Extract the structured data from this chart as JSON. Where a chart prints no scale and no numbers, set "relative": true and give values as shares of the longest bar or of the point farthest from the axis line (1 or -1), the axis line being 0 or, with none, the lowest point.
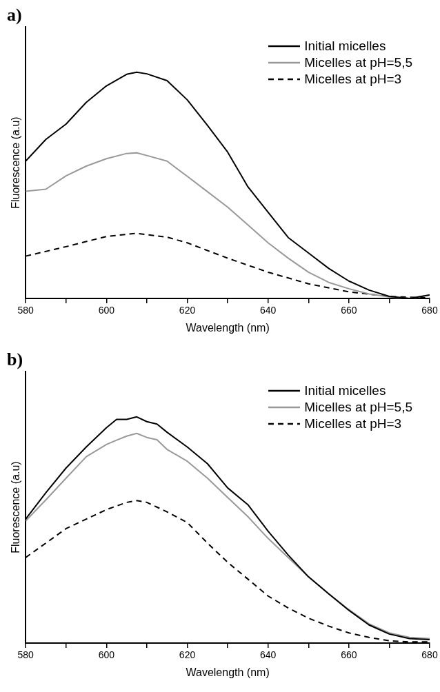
{
  "chart_data": [
    {
      "type": "line",
      "title": "a)",
      "xlabel": "Wavelength (nm)",
      "ylabel": "Fluorescence (a.u)",
      "relative": true,
      "xlim": [
        580,
        680
      ],
      "xticks": [
        580,
        {
          "value": 590,
          "label": null
        },
        600,
        {
          "value": 610,
          "label": null
        },
        620,
        {
          "value": 630,
          "label": null
        },
        640,
        {
          "value": 650,
          "label": null
        },
        660,
        {
          "value": 670,
          "label": null
        },
        680
      ],
      "legend": "top right",
      "grid": false,
      "marker": "none",
      "x": [
        580,
        585,
        590,
        595,
        600,
        605,
        607.5,
        610,
        615,
        620,
        625,
        630,
        635,
        640,
        645,
        650,
        655,
        660,
        665,
        670,
        675,
        680
      ],
      "series": [
        {
          "name": "Initial micelles",
          "color": "#000000",
          "line_style": "solid",
          "values": [
            0.607,
            0.703,
            0.771,
            0.867,
            0.94,
            0.991,
            1.0,
            0.993,
            0.963,
            0.878,
            0.765,
            0.647,
            0.494,
            0.381,
            0.269,
            0.201,
            0.133,
            0.077,
            0.037,
            0.009,
            0.0,
            0.015
          ]
        },
        {
          "name": "Micelles at pH=5,5",
          "color": "#999999",
          "line_style": "solid",
          "values": [
            0.474,
            0.483,
            0.542,
            0.585,
            0.618,
            0.641,
            0.644,
            0.632,
            0.607,
            0.54,
            0.472,
            0.404,
            0.325,
            0.246,
            0.178,
            0.116,
            0.071,
            0.043,
            0.02,
            0.007,
            0.0,
            0.015
          ]
        },
        {
          "name": "Micelles at pH=3",
          "color": "#000000",
          "line_style": "dashed",
          "x": [
            580,
            590,
            600,
            607.5,
            615,
            620,
            630,
            640,
            650,
            660,
            670,
            680
          ],
          "values": [
            0.187,
            0.229,
            0.274,
            0.288,
            0.271,
            0.246,
            0.178,
            0.116,
            0.065,
            0.029,
            0.009,
            0.002
          ]
        }
      ]
    },
    {
      "type": "line",
      "title": "b)",
      "xlabel": "Wavelength (nm)",
      "ylabel": "Fluorescence (a.u)",
      "relative": true,
      "xlim": [
        580,
        680
      ],
      "xticks": [
        580,
        {
          "value": 590,
          "label": null
        },
        600,
        {
          "value": 610,
          "label": null
        },
        620,
        {
          "value": 630,
          "label": null
        },
        640,
        {
          "value": 650,
          "label": null
        },
        660,
        {
          "value": 670,
          "label": null
        },
        680
      ],
      "legend": "top right",
      "grid": false,
      "marker": "none",
      "x": [
        580,
        585,
        590,
        595,
        600,
        602.5,
        605,
        607.5,
        610,
        612.5,
        615,
        620,
        625,
        630,
        635,
        640,
        645,
        650,
        655,
        660,
        665,
        670,
        675,
        680
      ],
      "series": [
        {
          "name": "Initial micelles",
          "color": "#000000",
          "line_style": "solid",
          "values": [
            0.548,
            0.665,
            0.774,
            0.867,
            0.952,
            0.989,
            0.989,
            1.0,
            0.979,
            0.968,
            0.932,
            0.867,
            0.793,
            0.686,
            0.612,
            0.495,
            0.389,
            0.293,
            0.218,
            0.145,
            0.08,
            0.04,
            0.02,
            0.015
          ]
        },
        {
          "name": "Micelles at pH=5,5",
          "color": "#999999",
          "line_style": "solid",
          "values": [
            0.54,
            0.633,
            0.729,
            0.824,
            0.878,
            0.897,
            0.915,
            0.927,
            0.909,
            0.899,
            0.856,
            0.804,
            0.729,
            0.644,
            0.559,
            0.463,
            0.378,
            0.293,
            0.218,
            0.148,
            0.085,
            0.045,
            0.025,
            0.02
          ]
        },
        {
          "name": "Micelles at pH=3",
          "color": "#000000",
          "line_style": "dashed",
          "values": [
            0.378,
            0.442,
            0.506,
            0.548,
            0.59,
            0.606,
            0.622,
            0.63,
            0.622,
            0.601,
            0.58,
            0.533,
            0.442,
            0.357,
            0.283,
            0.208,
            0.155,
            0.11,
            0.075,
            0.045,
            0.025,
            0.01,
            0.005,
            0.005
          ]
        }
      ]
    }
  ]
}
